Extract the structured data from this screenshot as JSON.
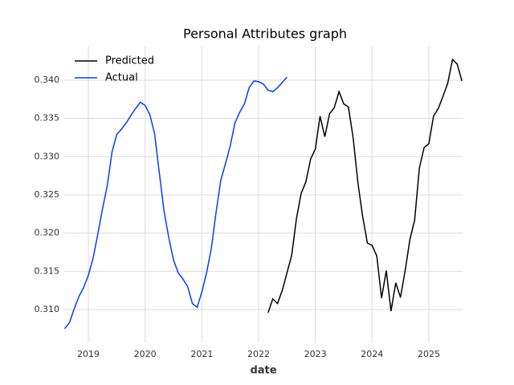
{
  "chart_data": {
    "type": "line",
    "title": "Personal Attributes graph",
    "x_label": "date",
    "xlim": [
      2018.575,
      2025.595
    ],
    "xticks": [
      2019,
      2020,
      2021,
      2022,
      2023,
      2024,
      2025
    ],
    "ylim": [
      0.3057,
      0.3444
    ],
    "yticks": [
      {
        "value": 0.31,
        "label": "0.310"
      },
      {
        "value": 0.315,
        "label": "0.315"
      },
      {
        "value": 0.32,
        "label": "0.320"
      },
      {
        "value": 0.325,
        "label": "0.325"
      },
      {
        "value": 0.33,
        "label": "0.330"
      },
      {
        "value": 0.335,
        "label": "0.335"
      },
      {
        "value": 0.34,
        "label": "0.340"
      }
    ],
    "grid": true,
    "legend": "upper-left",
    "series": [
      {
        "name": "Predicted",
        "color": "#000000",
        "x": [
          2022.167,
          2022.25,
          2022.333,
          2022.417,
          2022.5,
          2022.583,
          2022.667,
          2022.75,
          2022.833,
          2022.917,
          2023,
          2023.083,
          2023.167,
          2023.25,
          2023.333,
          2023.417,
          2023.5,
          2023.583,
          2023.667,
          2023.75,
          2023.833,
          2023.917,
          2024,
          2024.083,
          2024.167,
          2024.25,
          2024.333,
          2024.417,
          2024.5,
          2024.583,
          2024.667,
          2024.75,
          2024.833,
          2024.917,
          2025,
          2025.083,
          2025.167,
          2025.25,
          2025.333,
          2025.417,
          2025.5,
          2025.583
        ],
        "values": [
          0.3096,
          0.3114,
          0.3108,
          0.3125,
          0.3148,
          0.3171,
          0.3219,
          0.3252,
          0.3267,
          0.3297,
          0.331,
          0.3353,
          0.3326,
          0.3356,
          0.3364,
          0.3385,
          0.3369,
          0.3365,
          0.3324,
          0.3266,
          0.3222,
          0.3187,
          0.3184,
          0.317,
          0.3115,
          0.3151,
          0.3098,
          0.3135,
          0.3116,
          0.3151,
          0.3192,
          0.3217,
          0.3285,
          0.3312,
          0.3317,
          0.3353,
          0.3363,
          0.3379,
          0.3396,
          0.3427,
          0.3421,
          0.3399
        ]
      },
      {
        "name": "Actual",
        "color": "#0a3cf5",
        "x": [
          2018.583,
          2018.667,
          2018.75,
          2018.833,
          2018.917,
          2019,
          2019.083,
          2019.167,
          2019.25,
          2019.333,
          2019.417,
          2019.5,
          2019.583,
          2019.667,
          2019.75,
          2019.833,
          2019.917,
          2020,
          2020.083,
          2020.167,
          2020.25,
          2020.333,
          2020.417,
          2020.5,
          2020.583,
          2020.667,
          2020.75,
          2020.833,
          2020.917,
          2021,
          2021.083,
          2021.167,
          2021.25,
          2021.333,
          2021.417,
          2021.5,
          2021.583,
          2021.667,
          2021.75,
          2021.833,
          2021.917,
          2022,
          2022.083,
          2022.167,
          2022.25,
          2022.333,
          2022.417,
          2022.5
        ],
        "values": [
          0.3075,
          0.3083,
          0.3101,
          0.3117,
          0.3129,
          0.3145,
          0.3167,
          0.3199,
          0.3232,
          0.3262,
          0.3306,
          0.3329,
          0.3336,
          0.3344,
          0.3354,
          0.3363,
          0.3371,
          0.3367,
          0.3355,
          0.333,
          0.3279,
          0.3229,
          0.3194,
          0.3165,
          0.3148,
          0.314,
          0.313,
          0.3108,
          0.3103,
          0.3123,
          0.3148,
          0.318,
          0.3227,
          0.3269,
          0.3291,
          0.3314,
          0.3344,
          0.3358,
          0.3369,
          0.339,
          0.3399,
          0.3398,
          0.3395,
          0.3387,
          0.3385,
          0.339,
          0.3397,
          0.3404
        ]
      }
    ]
  }
}
